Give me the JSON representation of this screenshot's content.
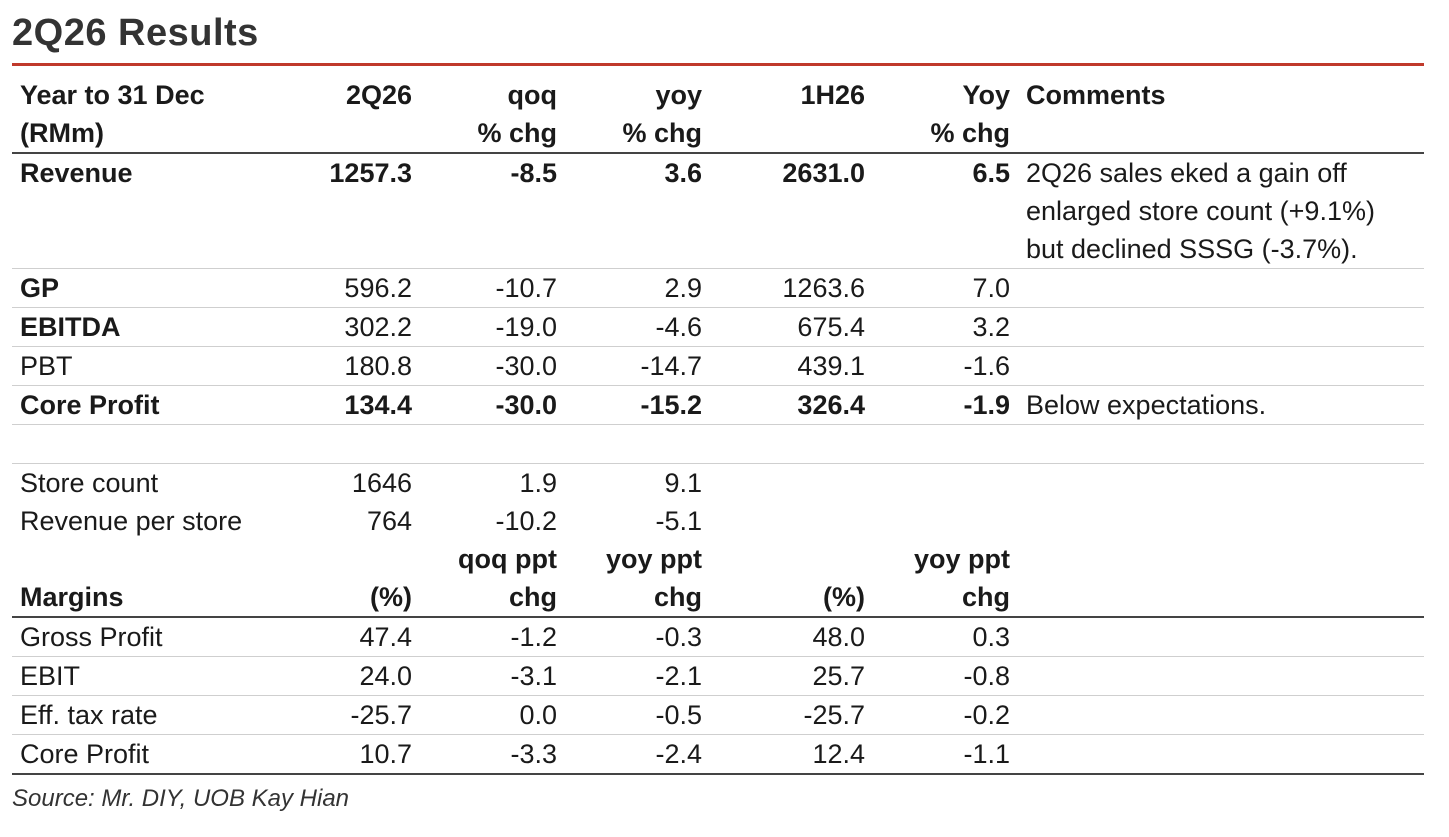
{
  "title": "2Q26 Results",
  "header": {
    "c0": [
      "Year to 31 Dec",
      "(RMm)"
    ],
    "c1": [
      "2Q26",
      ""
    ],
    "c2": [
      "qoq",
      "% chg"
    ],
    "c3": [
      "yoy",
      "% chg"
    ],
    "c4": [
      "1H26",
      ""
    ],
    "c5": [
      "Yoy",
      "% chg"
    ],
    "c6": [
      "Comments",
      ""
    ]
  },
  "rows": [
    {
      "label": "Revenue",
      "v": [
        "1257.3",
        "-8.5",
        "3.6",
        "2631.0",
        "6.5"
      ],
      "comment": "2Q26 sales eked a gain off enlarged store count (+9.1%) but declined SSSG (-3.7%)."
    },
    {
      "label": "GP",
      "v": [
        "596.2",
        "-10.7",
        "2.9",
        "1263.6",
        "7.0"
      ],
      "comment": ""
    },
    {
      "label": "EBITDA",
      "v": [
        "302.2",
        "-19.0",
        "-4.6",
        "675.4",
        "3.2"
      ],
      "comment": ""
    },
    {
      "label": "PBT",
      "v": [
        "180.8",
        "-30.0",
        "-14.7",
        "439.1",
        "-1.6"
      ],
      "comment": ""
    },
    {
      "label": "Core Profit",
      "v": [
        "134.4",
        "-30.0",
        "-15.2",
        "326.4",
        "-1.9"
      ],
      "comment": "Below expectations."
    }
  ],
  "stores": [
    {
      "label": "Store count",
      "v": [
        "1646",
        "1.9",
        "9.1"
      ]
    },
    {
      "label": "Revenue per store",
      "v": [
        "764",
        "-10.2",
        "-5.1"
      ]
    }
  ],
  "margins_header": {
    "c0": "Margins",
    "c1": "(%)",
    "c2": [
      "qoq ppt",
      "chg"
    ],
    "c3": [
      "yoy ppt",
      "chg"
    ],
    "c4": "(%)",
    "c5": [
      "yoy ppt",
      "chg"
    ]
  },
  "margins": [
    {
      "label": "Gross Profit",
      "v": [
        "47.4",
        "-1.2",
        "-0.3",
        "48.0",
        "0.3"
      ]
    },
    {
      "label": "EBIT",
      "v": [
        "24.0",
        "-3.1",
        "-2.1",
        "25.7",
        "-0.8"
      ]
    },
    {
      "label": "Eff. tax rate",
      "v": [
        "-25.7",
        "0.0",
        "-0.5",
        "-25.7",
        "-0.2"
      ]
    },
    {
      "label": "Core Profit",
      "v": [
        "10.7",
        "-3.3",
        "-2.4",
        "12.4",
        "-1.1"
      ]
    }
  ],
  "source": "Source: Mr. DIY, UOB Kay Hian",
  "colors": {
    "accent_rule": "#c0392b"
  }
}
